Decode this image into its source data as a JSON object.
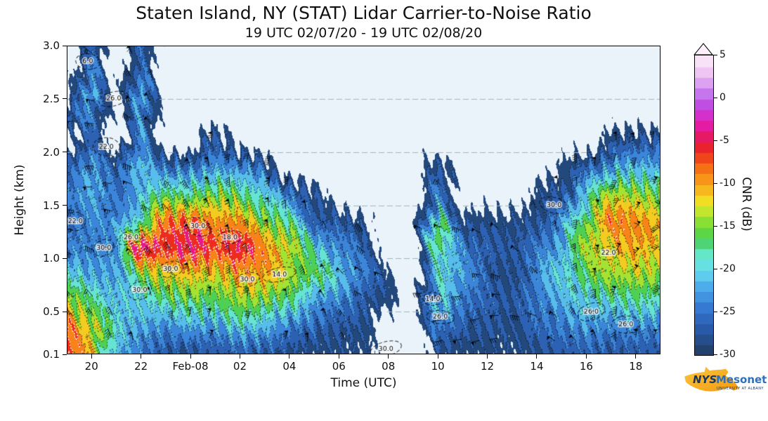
{
  "title": "Staten Island, NY (STAT) Lidar Carrier-to-Noise Ratio",
  "subtitle": "19 UTC 02/07/20 - 19 UTC 02/08/20",
  "xlabel": "Time (UTC)",
  "ylabel": "Height (km)",
  "plot_background": "#e9f3f9",
  "axes": {
    "x_range_hours": [
      19,
      43
    ],
    "y_range_km": [
      0.1,
      3.0
    ],
    "x_ticks": [
      {
        "hour": 20,
        "label": "20"
      },
      {
        "hour": 22,
        "label": "22"
      },
      {
        "hour": 24,
        "label": "Feb-08"
      },
      {
        "hour": 26,
        "label": "02"
      },
      {
        "hour": 28,
        "label": "04"
      },
      {
        "hour": 30,
        "label": "06"
      },
      {
        "hour": 32,
        "label": "08"
      },
      {
        "hour": 34,
        "label": "10"
      },
      {
        "hour": 36,
        "label": "12"
      },
      {
        "hour": 38,
        "label": "14"
      },
      {
        "hour": 40,
        "label": "16"
      },
      {
        "hour": 42,
        "label": "18"
      }
    ],
    "y_ticks": [
      {
        "km": 3.0,
        "label": "3.0"
      },
      {
        "km": 2.5,
        "label": "2.5"
      },
      {
        "km": 2.0,
        "label": "2.0"
      },
      {
        "km": 1.5,
        "label": "1.5"
      },
      {
        "km": 1.0,
        "label": "1.0"
      },
      {
        "km": 0.5,
        "label": "0.5"
      },
      {
        "km": 0.1,
        "label": "0.1"
      }
    ],
    "gridline_heights_km": [
      0.5,
      1.0,
      1.5,
      2.0,
      2.5
    ]
  },
  "colorbar": {
    "label": "CNR (dB)",
    "min": -30,
    "max": 5,
    "extend": "max",
    "ticks": [
      {
        "v": 5,
        "label": "5"
      },
      {
        "v": 0,
        "label": "0"
      },
      {
        "v": -5,
        "label": "-5"
      },
      {
        "v": -10,
        "label": "-10"
      },
      {
        "v": -15,
        "label": "-15"
      },
      {
        "v": -20,
        "label": "-20"
      },
      {
        "v": -25,
        "label": "-25"
      },
      {
        "v": -30,
        "label": "-30"
      }
    ],
    "anchors": [
      {
        "v": -30,
        "color": "#203c5e"
      },
      {
        "v": -27,
        "color": "#2858a5"
      },
      {
        "v": -24.5,
        "color": "#3476d2"
      },
      {
        "v": -22,
        "color": "#4baaeb"
      },
      {
        "v": -20,
        "color": "#69dcee"
      },
      {
        "v": -18,
        "color": "#64e8c3"
      },
      {
        "v": -16.5,
        "color": "#46cd5a"
      },
      {
        "v": -15,
        "color": "#6edc37"
      },
      {
        "v": -13,
        "color": "#c8e62d"
      },
      {
        "v": -12,
        "color": "#f0e123"
      },
      {
        "v": -10,
        "color": "#faa51c"
      },
      {
        "v": -8,
        "color": "#f66e16"
      },
      {
        "v": -6,
        "color": "#eb231e"
      },
      {
        "v": -4.5,
        "color": "#e6195f"
      },
      {
        "v": -3,
        "color": "#e41caa"
      },
      {
        "v": -1.5,
        "color": "#cd37d7"
      },
      {
        "v": 0,
        "color": "#b95feb"
      },
      {
        "v": 1.5,
        "color": "#d796f0"
      },
      {
        "v": 3,
        "color": "#eec3f2"
      },
      {
        "v": 5,
        "color": "#fcf0fb"
      }
    ]
  },
  "chart_data": {
    "type": "heatmap",
    "value_units": "dB (CNR)",
    "x_hours_utc": [
      19,
      20,
      21,
      22,
      23,
      0,
      1,
      2,
      3,
      4,
      5,
      6,
      7,
      8,
      9,
      10,
      11,
      12,
      13,
      14,
      15,
      16,
      17,
      18,
      19
    ],
    "y_km": [
      0.1,
      0.35,
      0.6,
      0.85,
      1.1,
      1.35,
      1.6,
      1.85,
      2.1,
      2.35,
      2.6,
      2.85,
      3.0
    ],
    "grid_orientation": "rows bottom-to-top (first row = 0.10 km), columns left-to-right (first col = 19 UTC 02/07)",
    "no_data": null,
    "cnr_grid": [
      [
        -8,
        -10,
        -22,
        -24,
        -27,
        -28,
        -27,
        -26,
        -27,
        -28,
        -29,
        -29,
        -29,
        null,
        null,
        -28,
        -29,
        -29,
        -29,
        -28,
        -27,
        -26,
        -27,
        -27,
        -27
      ],
      [
        -7,
        -12,
        -20,
        -22,
        -24,
        -22,
        -23,
        -20,
        -22,
        -24,
        -26,
        -27,
        -28,
        null,
        null,
        -24,
        -27,
        -27,
        -28,
        -26,
        -24,
        -23,
        -24,
        -23,
        -24
      ],
      [
        -12,
        -18,
        -21,
        -20,
        -18,
        -16,
        -17,
        -14,
        -15,
        -18,
        -22,
        -24,
        -26,
        -29,
        null,
        -20,
        -24,
        -26,
        -28,
        -24,
        -22,
        -20,
        -19,
        -18,
        -19
      ],
      [
        -20,
        -22,
        -22,
        -16,
        -12,
        -11,
        -12,
        -10,
        -10,
        -13,
        -16,
        -20,
        -24,
        -29,
        null,
        -18,
        -22,
        -27,
        -28,
        -23,
        -20,
        -16,
        -14,
        -13,
        -14
      ],
      [
        -24,
        -24,
        -23,
        -3,
        -6,
        -4,
        -7,
        -4,
        -9,
        -12,
        -20,
        -23,
        -26,
        null,
        null,
        -17,
        -25,
        -26,
        -27,
        -25,
        -21,
        -14,
        -11,
        -10,
        -12
      ],
      [
        -26,
        -23,
        -24,
        -18,
        -8,
        -7,
        -9,
        -10,
        -14,
        -18,
        -26,
        -27,
        -29,
        null,
        null,
        -16,
        -28,
        -28,
        -29,
        -27,
        -24,
        -15,
        -8,
        -9,
        -11
      ],
      [
        -24,
        -21,
        -25,
        -22,
        -16,
        -18,
        -15,
        -16,
        -20,
        -24,
        -28,
        null,
        null,
        null,
        null,
        -22,
        null,
        null,
        null,
        -29,
        -27,
        -20,
        -13,
        -14,
        -15
      ],
      [
        -27,
        -23,
        -27,
        -21,
        -25,
        -24,
        -22,
        -23,
        -26,
        null,
        null,
        null,
        null,
        null,
        null,
        -27,
        null,
        null,
        null,
        null,
        -29,
        -26,
        -22,
        -21,
        -22
      ],
      [
        null,
        -24,
        null,
        -22,
        null,
        null,
        -26,
        null,
        null,
        null,
        null,
        null,
        null,
        null,
        null,
        null,
        null,
        null,
        null,
        null,
        null,
        null,
        -28,
        -27,
        -27
      ],
      [
        -26,
        -23,
        null,
        -21,
        null,
        null,
        null,
        null,
        null,
        null,
        null,
        null,
        null,
        null,
        null,
        null,
        null,
        null,
        null,
        null,
        null,
        null,
        null,
        null,
        null
      ],
      [
        null,
        -22,
        null,
        -23,
        null,
        null,
        null,
        null,
        null,
        null,
        null,
        null,
        null,
        null,
        null,
        null,
        null,
        null,
        null,
        null,
        null,
        null,
        null,
        null,
        null
      ],
      [
        null,
        -23,
        null,
        -24,
        null,
        null,
        null,
        null,
        null,
        null,
        null,
        null,
        null,
        null,
        null,
        null,
        null,
        null,
        null,
        null,
        null,
        null,
        null,
        null,
        null
      ],
      [
        null,
        -24,
        null,
        -25,
        null,
        null,
        null,
        null,
        null,
        null,
        null,
        null,
        null,
        null,
        null,
        null,
        null,
        null,
        null,
        null,
        null,
        null,
        null,
        null,
        null
      ]
    ]
  },
  "contour_annotations": [
    {
      "label": "6.0",
      "hour": 19.85,
      "km": 2.85
    },
    {
      "label": "26.0",
      "hour": 20.9,
      "km": 2.5
    },
    {
      "label": "22.0",
      "hour": 20.6,
      "km": 2.05
    },
    {
      "label": "22.0",
      "hour": 19.35,
      "km": 1.35
    },
    {
      "label": "30.0",
      "hour": 20.5,
      "km": 1.1
    },
    {
      "label": "26.0",
      "hour": 21.6,
      "km": 1.2
    },
    {
      "label": "30.0",
      "hour": 21.95,
      "km": 0.7
    },
    {
      "label": "30.0",
      "hour": 23.2,
      "km": 0.9
    },
    {
      "label": "30.0",
      "hour": 24.3,
      "km": 1.3
    },
    {
      "label": "18.0",
      "hour": 25.6,
      "km": 1.2
    },
    {
      "label": "30.0",
      "hour": 26.3,
      "km": 0.8
    },
    {
      "label": "14.0",
      "hour": 27.6,
      "km": 0.85
    },
    {
      "label": "30.0",
      "hour": 31.9,
      "km": 0.15
    },
    {
      "label": "14.0",
      "hour": 33.8,
      "km": 0.62
    },
    {
      "label": "26.0",
      "hour": 34.1,
      "km": 0.45
    },
    {
      "label": "30.0",
      "hour": 38.7,
      "km": 1.5
    },
    {
      "label": "22.0",
      "hour": 40.9,
      "km": 1.05
    },
    {
      "label": "26.0",
      "hour": 40.2,
      "km": 0.5
    },
    {
      "label": "26.0",
      "hour": 41.6,
      "km": 0.38
    }
  ],
  "wind_barbs": {
    "present": true,
    "color": "#000000"
  },
  "logo": {
    "nys": "NYS",
    "mesonet": "Mesonet",
    "tagline": "UNIVERSITY AT ALBANY"
  }
}
